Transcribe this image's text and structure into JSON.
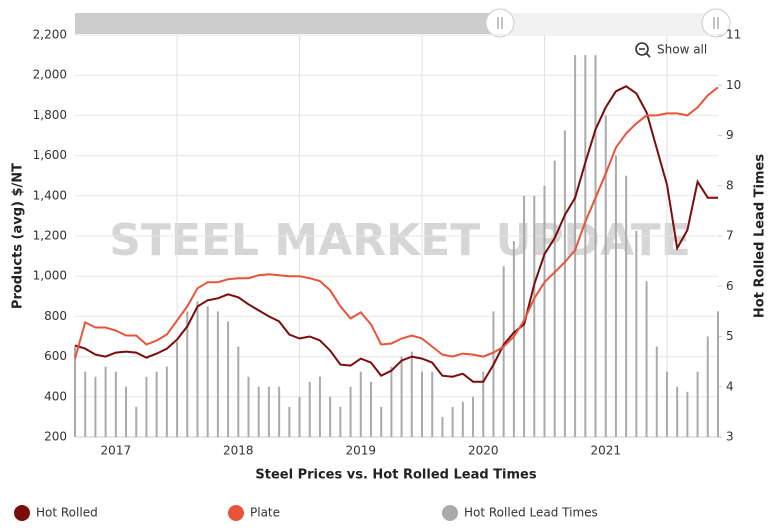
{
  "chart_data": {
    "type": "combo",
    "title": "Steel Prices vs. Hot Rolled Lead Times",
    "watermark": "STEEL MARKET UPDATE",
    "reset_button": "Show all",
    "y_label": "Products (avg) $/NT",
    "y2_label": "Hot Rolled Lead Times",
    "categories": [
      null,
      null,
      null,
      null,
      "2017",
      null,
      null,
      null,
      null,
      null,
      null,
      null,
      null,
      null,
      null,
      null,
      "2018",
      null,
      null,
      null,
      null,
      null,
      null,
      null,
      null,
      null,
      null,
      null,
      "2019",
      null,
      null,
      null,
      null,
      null,
      null,
      null,
      null,
      null,
      null,
      null,
      "2020",
      null,
      null,
      null,
      null,
      null,
      null,
      null,
      null,
      null,
      null,
      null,
      "2021",
      null,
      null,
      null,
      null,
      null,
      null,
      null,
      null,
      null,
      null,
      null
    ],
    "ylim": [
      200,
      2200
    ],
    "yticks": [
      200,
      400,
      600,
      800,
      {
        "value": 1000,
        "label": "1,000"
      },
      {
        "value": 1200,
        "label": "1,200"
      },
      {
        "value": 1400,
        "label": "1,400"
      },
      {
        "value": 1600,
        "label": "1,600"
      },
      {
        "value": 1800,
        "label": "1,800"
      },
      {
        "value": 2000,
        "label": "2,000"
      },
      {
        "value": 2200,
        "label": "2,200"
      }
    ],
    "y2lim": [
      3,
      11
    ],
    "y2ticks": [
      3,
      4,
      5,
      6,
      7,
      8,
      9,
      10,
      11
    ],
    "grid": true,
    "legend": "bottom",
    "series": [
      {
        "name": "Hot Rolled",
        "type": "line",
        "color": "#7b0c0c",
        "values": [
          655,
          640,
          610,
          600,
          620,
          625,
          620,
          595,
          615,
          640,
          685,
          750,
          850,
          880,
          890,
          910,
          895,
          860,
          830,
          800,
          775,
          710,
          690,
          700,
          680,
          630,
          560,
          555,
          590,
          570,
          505,
          530,
          580,
          600,
          590,
          570,
          505,
          500,
          515,
          475,
          475,
          560,
          660,
          720,
          760,
          960,
          1110,
          1190,
          1305,
          1390,
          1565,
          1730,
          1840,
          1920,
          1945,
          1910,
          1815,
          1635,
          1455,
          1140,
          1230,
          1470,
          1390,
          1390
        ]
      },
      {
        "name": "Plate",
        "type": "line",
        "color": "#e8543a",
        "values": [
          590,
          770,
          745,
          745,
          730,
          705,
          705,
          660,
          680,
          710,
          780,
          850,
          940,
          970,
          970,
          985,
          990,
          990,
          1005,
          1010,
          1005,
          1000,
          1000,
          990,
          975,
          930,
          850,
          790,
          820,
          760,
          660,
          665,
          690,
          705,
          690,
          650,
          610,
          600,
          615,
          610,
          600,
          620,
          650,
          700,
          780,
          890,
          970,
          1020,
          1070,
          1130,
          1270,
          1390,
          1510,
          1640,
          1710,
          1760,
          1800,
          1800,
          1810,
          1810,
          1800,
          1840,
          1900,
          1940
        ]
      },
      {
        "name": "Hot Rolled Lead Times",
        "type": "bar",
        "axis": "y2",
        "color": "#aaaaaa",
        "values": [
          4.8,
          4.3,
          4.2,
          4.4,
          4.3,
          4.0,
          3.6,
          4.2,
          4.3,
          4.4,
          4.9,
          5.5,
          5.7,
          5.6,
          5.5,
          5.3,
          4.8,
          4.2,
          4.0,
          4.0,
          4.0,
          3.6,
          3.8,
          4.1,
          4.2,
          3.8,
          3.6,
          4.0,
          4.3,
          4.1,
          3.6,
          4.4,
          4.6,
          4.7,
          4.3,
          4.3,
          3.4,
          3.6,
          3.7,
          3.8,
          4.3,
          5.5,
          6.4,
          6.9,
          7.8,
          7.8,
          8.0,
          8.5,
          9.1,
          10.6,
          10.6,
          10.6,
          9.4,
          8.6,
          8.2,
          7.1,
          6.1,
          4.8,
          4.3,
          4.0,
          3.9,
          4.3,
          5.0,
          5.5
        ]
      }
    ]
  }
}
